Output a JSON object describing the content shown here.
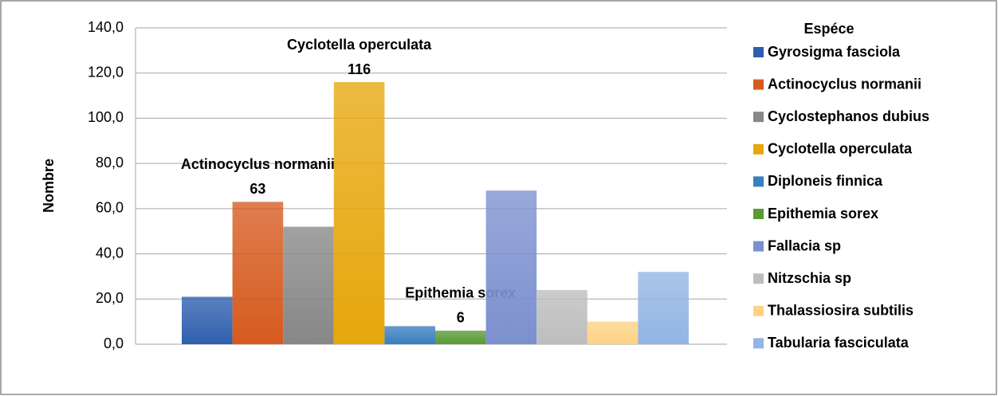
{
  "chart_data": {
    "type": "bar",
    "y_label": "Nombre",
    "legend_title": "Espéce",
    "legend": "right",
    "grid": true,
    "ylim": [
      0,
      140
    ],
    "yticks": [
      {
        "value": 0,
        "label": "0,0"
      },
      {
        "value": 20,
        "label": "20,0"
      },
      {
        "value": 40,
        "label": "40,0"
      },
      {
        "value": 60,
        "label": "60,0"
      },
      {
        "value": 80,
        "label": "80,0"
      },
      {
        "value": 100,
        "label": "100,0"
      },
      {
        "value": 120,
        "label": "120,0"
      },
      {
        "value": 140,
        "label": "140,0"
      }
    ],
    "series": [
      {
        "name": "Gyrosigma fasciola",
        "color": "#2e5fae",
        "values": [
          21
        ]
      },
      {
        "name": "Actinocyclus normanii",
        "color": "#d65a1e",
        "values": [
          63
        ],
        "show_label": true
      },
      {
        "name": "Cyclostephanos dubius",
        "color": "#878787",
        "values": [
          52
        ]
      },
      {
        "name": "Cyclotella operculata",
        "color": "#e6a70c",
        "values": [
          116
        ],
        "show_label": true
      },
      {
        "name": "Diploneis finnica",
        "color": "#3a7fbf",
        "values": [
          8
        ]
      },
      {
        "name": "Epithemia sorex",
        "color": "#5a9a34",
        "values": [
          6
        ],
        "show_label": true
      },
      {
        "name": "Fallacia sp",
        "color": "#7c90cf",
        "values": [
          68
        ]
      },
      {
        "name": "Nitzschia sp",
        "color": "#bdbdbd",
        "values": [
          24
        ]
      },
      {
        "name": "Thalassiosira subtilis",
        "color": "#fdd283",
        "values": [
          10
        ]
      },
      {
        "name": "Tabularia fasciculata",
        "color": "#92b5e3",
        "values": [
          32
        ]
      }
    ]
  }
}
